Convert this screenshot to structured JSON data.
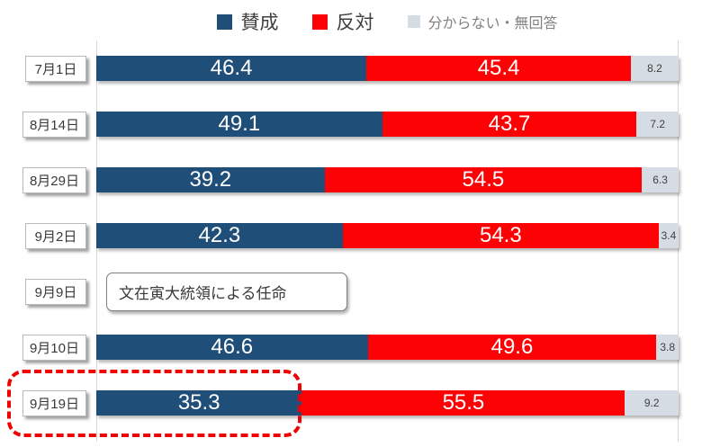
{
  "chart_data": {
    "type": "bar",
    "orientation": "horizontal-stacked",
    "unit": "percent",
    "xlim": [
      0,
      100
    ],
    "grid": "vertical-edges-only",
    "legend_position": "top-center",
    "series": [
      {
        "name": "賛成",
        "color": "#1f4e79",
        "label_color": "#ffffff"
      },
      {
        "name": "反対",
        "color": "#fc0204",
        "label_color": "#ffffff"
      },
      {
        "name": "分からない・無回答",
        "color": "#d6dce4",
        "label_color": "#404040"
      }
    ],
    "rows": [
      {
        "date": "7月1日",
        "values": [
          46.4,
          45.4,
          8.2
        ]
      },
      {
        "date": "8月14日",
        "values": [
          49.1,
          43.7,
          7.2
        ]
      },
      {
        "date": "8月29日",
        "values": [
          39.2,
          54.5,
          6.3
        ]
      },
      {
        "date": "9月2日",
        "values": [
          42.3,
          54.3,
          3.4
        ]
      },
      {
        "date": "9月9日",
        "annotation": "文在寅大統領による任命"
      },
      {
        "date": "9月10日",
        "values": [
          46.6,
          49.6,
          3.8
        ]
      },
      {
        "date": "9月19日",
        "values": [
          35.3,
          55.5,
          9.2
        ],
        "highlighted": true
      }
    ],
    "highlight": {
      "style": "red-dashed-rounded-outline",
      "color": "#f00000",
      "target_row": "9月19日",
      "target_series": "賛成"
    }
  }
}
